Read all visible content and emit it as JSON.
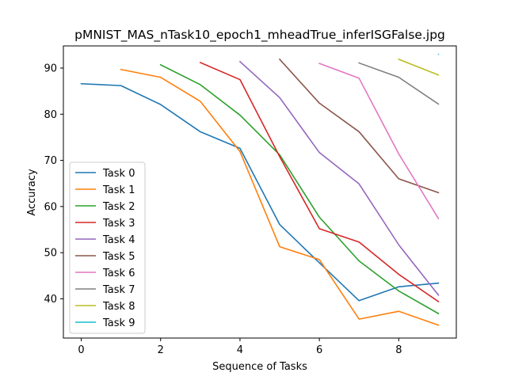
{
  "chart_data": {
    "type": "line",
    "title": "pMNIST_MAS_nTask10_epoch1_mheadTrue_inferISGFalse.jpg",
    "xlabel": "Sequence of Tasks",
    "ylabel": "Accuracy",
    "xlim": [
      -0.45,
      9.45
    ],
    "ylim": [
      31.5,
      94.8
    ],
    "xticks": [
      0,
      2,
      4,
      6,
      8
    ],
    "yticks": [
      40,
      50,
      60,
      70,
      80,
      90
    ],
    "grid": false,
    "legend_position": "lower-left",
    "series": [
      {
        "name": "Task 0",
        "color": "#1f77b4",
        "x": [
          0,
          1,
          2,
          3,
          4,
          5,
          6,
          7,
          8,
          9
        ],
        "values": [
          86.6,
          86.2,
          82.1,
          76.2,
          72.6,
          56.1,
          47.8,
          39.6,
          42.6,
          43.4
        ]
      },
      {
        "name": "Task 1",
        "color": "#ff7f0e",
        "x": [
          1,
          2,
          3,
          4,
          5,
          6,
          7,
          8,
          9
        ],
        "values": [
          89.7,
          88.0,
          82.8,
          71.9,
          51.3,
          48.5,
          35.6,
          37.3,
          34.3
        ]
      },
      {
        "name": "Task 2",
        "color": "#2ca02c",
        "x": [
          2,
          3,
          4,
          5,
          6,
          7,
          8,
          9
        ],
        "values": [
          90.7,
          86.4,
          79.8,
          71.2,
          57.7,
          48.2,
          41.7,
          36.8
        ]
      },
      {
        "name": "Task 3",
        "color": "#d62728",
        "x": [
          3,
          4,
          5,
          6,
          7,
          8,
          9
        ],
        "values": [
          91.2,
          87.5,
          70.8,
          55.2,
          52.3,
          45.3,
          39.4
        ]
      },
      {
        "name": "Task 4",
        "color": "#9467bd",
        "x": [
          4,
          5,
          6,
          7,
          8,
          9
        ],
        "values": [
          91.4,
          83.6,
          71.7,
          64.9,
          51.7,
          40.8
        ]
      },
      {
        "name": "Task 5",
        "color": "#8c564b",
        "x": [
          5,
          6,
          7,
          8,
          9
        ],
        "values": [
          91.9,
          82.4,
          76.2,
          66.0,
          63.0
        ]
      },
      {
        "name": "Task 6",
        "color": "#e377c2",
        "x": [
          6,
          7,
          8,
          9
        ],
        "values": [
          91.0,
          87.8,
          71.4,
          57.4
        ]
      },
      {
        "name": "Task 7",
        "color": "#7f7f7f",
        "x": [
          7,
          8,
          9
        ],
        "values": [
          91.1,
          88.0,
          82.2
        ]
      },
      {
        "name": "Task 8",
        "color": "#bcbd22",
        "x": [
          8,
          9
        ],
        "values": [
          91.9,
          88.5
        ]
      },
      {
        "name": "Task 9",
        "color": "#17becf",
        "x": [
          9
        ],
        "values": [
          93.0
        ]
      }
    ]
  }
}
